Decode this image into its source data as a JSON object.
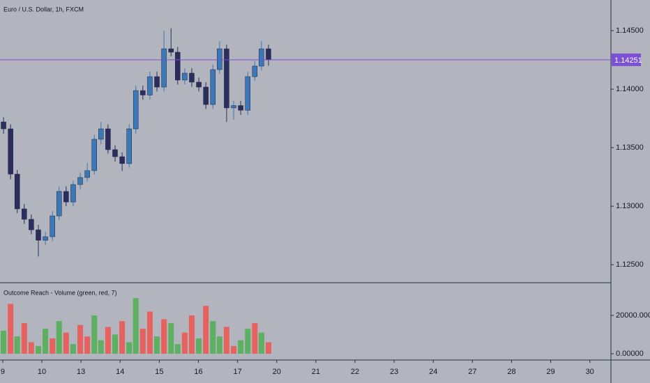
{
  "chart_data": [
    {
      "type": "candlestick",
      "title": "Euro / U.S. Dollar, 1h, FXCM",
      "x": [
        0.02,
        0.2,
        0.37,
        0.55,
        0.73,
        0.91,
        1.09,
        1.27,
        1.44,
        1.62,
        1.8,
        1.98,
        2.16,
        2.34,
        2.51,
        2.69,
        2.87,
        3.05,
        3.23,
        3.4,
        3.58,
        3.76,
        3.94,
        4.12,
        4.3,
        4.47,
        4.65,
        4.83,
        5.01,
        5.19,
        5.37,
        5.54,
        5.72,
        5.9,
        6.08,
        6.26,
        6.44,
        6.61,
        6.79
      ],
      "open": [
        1.1372,
        1.13661,
        1.13274,
        1.12977,
        1.12888,
        1.12798,
        1.12709,
        1.12739,
        1.12917,
        1.13126,
        1.13036,
        1.13185,
        1.13245,
        1.13304,
        1.13572,
        1.13661,
        1.13483,
        1.13423,
        1.13364,
        1.13661,
        1.13988,
        1.1395,
        1.14107,
        1.14018,
        1.14345,
        1.14316,
        1.14078,
        1.14137,
        1.1406,
        1.14018,
        1.13869,
        1.14167,
        1.14345,
        1.1384,
        1.1386,
        1.1382,
        1.14107,
        1.14197,
        1.14345
      ],
      "high": [
        1.1376,
        1.137,
        1.1331,
        1.1302,
        1.1293,
        1.1284,
        1.1278,
        1.1296,
        1.1317,
        1.1317,
        1.1322,
        1.1329,
        1.1337,
        1.1361,
        1.1372,
        1.137,
        1.1352,
        1.1346,
        1.137,
        1.1403,
        1.1403,
        1.1415,
        1.1415,
        1.145,
        1.1452,
        1.1436,
        1.1418,
        1.1418,
        1.141,
        1.1406,
        1.1421,
        1.1441,
        1.1438,
        1.139,
        1.139,
        1.1415,
        1.1424,
        1.1441,
        1.1438
      ],
      "low": [
        1.1362,
        1.1323,
        1.1294,
        1.1285,
        1.1276,
        1.1257,
        1.1267,
        1.127,
        1.1288,
        1.13,
        1.13,
        1.1314,
        1.1321,
        1.1327,
        1.1353,
        1.1345,
        1.1338,
        1.133,
        1.1333,
        1.1362,
        1.1391,
        1.1391,
        1.1398,
        1.1398,
        1.1428,
        1.1404,
        1.1404,
        1.1402,
        1.1398,
        1.1383,
        1.1383,
        1.1413,
        1.1372,
        1.1374,
        1.1378,
        1.1378,
        1.1407,
        1.1416,
        1.142
      ],
      "close": [
        1.13661,
        1.13274,
        1.12977,
        1.12888,
        1.12798,
        1.12709,
        1.12739,
        1.12917,
        1.13126,
        1.13036,
        1.13185,
        1.13245,
        1.13304,
        1.13572,
        1.13661,
        1.13483,
        1.13423,
        1.13364,
        1.13661,
        1.13988,
        1.1395,
        1.14107,
        1.14018,
        1.14345,
        1.14316,
        1.14078,
        1.14137,
        1.1406,
        1.14018,
        1.13869,
        1.14167,
        1.14345,
        1.1384,
        1.1386,
        1.1382,
        1.14107,
        1.14197,
        1.14345,
        1.14251
      ],
      "up_color": "#3b78b5",
      "down_color": "#2b2d5c",
      "xlim": [
        -0.07,
        15.54
      ],
      "ylim": [
        1.12352,
        1.14762
      ],
      "yticks": [
        {
          "value": 1.145,
          "label": "1.14500"
        },
        {
          "value": 1.14,
          "label": "1.14000"
        },
        {
          "value": 1.135,
          "label": "1.13500"
        },
        {
          "value": 1.13,
          "label": "1.13000"
        },
        {
          "value": 1.125,
          "label": "1.12500"
        }
      ],
      "price_line": {
        "value": 1.14251,
        "color": "#7b4fd6"
      }
    },
    {
      "type": "bar",
      "title": "Outcome Reach - Volume (green, red, 7)",
      "x": [
        0.02,
        0.2,
        0.37,
        0.55,
        0.73,
        0.91,
        1.09,
        1.27,
        1.44,
        1.62,
        1.8,
        1.98,
        2.16,
        2.34,
        2.51,
        2.69,
        2.87,
        3.05,
        3.23,
        3.4,
        3.58,
        3.76,
        3.94,
        4.12,
        4.3,
        4.47,
        4.65,
        4.83,
        5.01,
        5.19,
        5.37,
        5.54,
        5.72,
        5.9,
        6.08,
        6.26,
        6.44,
        6.61,
        6.79
      ],
      "values": [
        12000,
        26000,
        9000,
        16000,
        6000,
        4000,
        13000,
        8000,
        17000,
        11000,
        5000,
        15000,
        9000,
        20000,
        7000,
        14000,
        10000,
        17000,
        6000,
        29000,
        13000,
        22000,
        9000,
        18000,
        16000,
        5000,
        11000,
        20000,
        8000,
        25000,
        17000,
        9000,
        14000,
        4000,
        7000,
        13000,
        16000,
        11000,
        6000
      ],
      "colors": [
        "#4caf50",
        "#f0524f",
        "#4caf50",
        "#f0524f",
        "#f0524f",
        "#4caf50",
        "#4caf50",
        "#f0524f",
        "#4caf50",
        "#f0524f",
        "#4caf50",
        "#f0524f",
        "#f0524f",
        "#4caf50",
        "#4caf50",
        "#f0524f",
        "#4caf50",
        "#f0524f",
        "#4caf50",
        "#4caf50",
        "#f0524f",
        "#f0524f",
        "#4caf50",
        "#f0524f",
        "#4caf50",
        "#4caf50",
        "#f0524f",
        "#f0524f",
        "#4caf50",
        "#f0524f",
        "#4caf50",
        "#4caf50",
        "#f0524f",
        "#f0524f",
        "#4caf50",
        "#4caf50",
        "#f0524f",
        "#4caf50",
        "#f0524f"
      ],
      "xlim": [
        -0.07,
        15.54
      ],
      "ylim": [
        -3300,
        36700
      ],
      "yticks": [
        {
          "value": 20000,
          "label": "20000.00000"
        },
        {
          "value": 0,
          "label": "0.00000"
        }
      ],
      "xticks": [
        {
          "value": 0,
          "label": "9"
        },
        {
          "value": 1,
          "label": "10"
        },
        {
          "value": 2,
          "label": "13"
        },
        {
          "value": 3,
          "label": "14"
        },
        {
          "value": 4,
          "label": "15"
        },
        {
          "value": 5,
          "label": "16"
        },
        {
          "value": 6,
          "label": "17"
        },
        {
          "value": 7,
          "label": "20"
        },
        {
          "value": 8,
          "label": "21"
        },
        {
          "value": 9,
          "label": "22"
        },
        {
          "value": 10,
          "label": "23"
        },
        {
          "value": 11,
          "label": "24"
        },
        {
          "value": 12,
          "label": "27"
        },
        {
          "value": 13,
          "label": "28"
        },
        {
          "value": 14,
          "label": "29"
        },
        {
          "value": 15,
          "label": "30"
        }
      ]
    }
  ]
}
